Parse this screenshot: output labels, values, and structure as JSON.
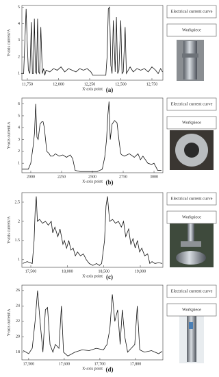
{
  "chart_data": [
    {
      "type": "line",
      "caption": "(a)",
      "annotations": [
        "Electrical current curve",
        "Workpiece"
      ],
      "x_label": "X-axis point",
      "y_label": "Y-axis current/A",
      "color": "#111111",
      "xlim": [
        11706,
        12838
      ],
      "ylim": [
        0.6,
        5.1
      ],
      "xticks": [
        {
          "value": 11750,
          "label": "11,750"
        },
        {
          "value": 12000,
          "label": "12,000"
        },
        {
          "value": 12250,
          "label": "12,250"
        },
        {
          "value": 12500,
          "label": "12,500"
        },
        {
          "value": 12750,
          "label": "12,750"
        }
      ],
      "yticks": [
        1,
        2,
        3,
        4,
        5
      ],
      "x": [
        11700,
        11720,
        11730,
        11740,
        11748,
        11758,
        11770,
        11782,
        11790,
        11798,
        11806,
        11815,
        11823,
        11832,
        11840,
        11848,
        11858,
        11870,
        11880,
        11890,
        11900,
        11930,
        11960,
        11990,
        12020,
        12050,
        12080,
        12110,
        12140,
        12170,
        12200,
        12230,
        12260,
        12275,
        12300,
        12340,
        12380,
        12390,
        12400,
        12410,
        12420,
        12430,
        12440,
        12455,
        12465,
        12475,
        12485,
        12500,
        12510,
        12520,
        12535,
        12545,
        12560,
        12575,
        12600,
        12630,
        12660,
        12690,
        12720,
        12750,
        12780,
        12800,
        12820,
        12835
      ],
      "values": [
        1,
        1,
        3,
        4.9,
        3,
        1.2,
        1,
        4.1,
        1,
        1,
        4.3,
        1.1,
        1,
        4.3,
        1.1,
        1,
        3.8,
        1,
        1.3,
        0.9,
        1.2,
        1.1,
        1.3,
        1.2,
        1.4,
        1.1,
        1.3,
        1.2,
        1.1,
        1.3,
        1.2,
        1.3,
        1.1,
        0.9,
        0.9,
        0.9,
        0.9,
        2,
        4.9,
        5,
        1.5,
        1,
        4.2,
        1.1,
        4.4,
        1,
        1.2,
        4.2,
        1,
        1.1,
        3.8,
        1,
        1.2,
        1.4,
        1.1,
        1.3,
        1.2,
        1.3,
        1.1,
        1.4,
        1.2,
        1,
        1.3,
        1.1
      ]
    },
    {
      "type": "line",
      "caption": "(b)",
      "annotations": [
        "Electrical current curve",
        "Workpiece"
      ],
      "x_label": "X-axis point",
      "y_label": "Y-axis current/A",
      "color": "#111111",
      "xlim": [
        1928,
        3072
      ],
      "ylim": [
        0.2,
        6.5
      ],
      "xticks": [
        2000,
        2250,
        2500,
        2750,
        3000
      ],
      "yticks": [
        1,
        2,
        3,
        4,
        5,
        6
      ],
      "x": [
        1930,
        1980,
        2000,
        2020,
        2030,
        2040,
        2050,
        2060,
        2075,
        2090,
        2100,
        2110,
        2130,
        2150,
        2160,
        2180,
        2200,
        2230,
        2260,
        2290,
        2320,
        2340,
        2360,
        2400,
        2450,
        2500,
        2540,
        2580,
        2600,
        2615,
        2625,
        2635,
        2645,
        2660,
        2680,
        2700,
        2715,
        2730,
        2740,
        2760,
        2800,
        2840,
        2870,
        2890,
        2910,
        2950,
        2980,
        3000,
        3030,
        3060
      ],
      "values": [
        0.5,
        0.5,
        1,
        2.5,
        3.5,
        6,
        3.2,
        3,
        4.3,
        4.5,
        4.5,
        4,
        2,
        1.8,
        1.6,
        1.6,
        1.8,
        1.6,
        1.7,
        1.5,
        1.7,
        1.4,
        0.4,
        0.3,
        0.3,
        0.3,
        0.3,
        0.5,
        1.5,
        3,
        5,
        6.2,
        3,
        4.3,
        4.6,
        4.4,
        3,
        1.8,
        1.7,
        1.6,
        1.8,
        1.5,
        1.8,
        1.3,
        1.6,
        1,
        0.9,
        1,
        0.4,
        0.4
      ]
    },
    {
      "type": "line",
      "caption": "(c)",
      "annotations": [
        "Electrical current curve",
        "Workpiece"
      ],
      "x_label": "X-axis point",
      "y_label": "Y-axis current/A",
      "color": "#111111",
      "xlim": [
        17378,
        19309
      ],
      "ylim": [
        0.8,
        2.75
      ],
      "xticks": [
        {
          "value": 17500,
          "label": "17,500"
        },
        {
          "value": 18000,
          "label": "18,000"
        },
        {
          "value": 18500,
          "label": "18,500"
        },
        {
          "value": 19000,
          "label": "19,000"
        }
      ],
      "yticks": [
        1,
        1.5,
        2,
        2.5
      ],
      "x": [
        17390,
        17450,
        17520,
        17545,
        17560,
        17575,
        17590,
        17620,
        17660,
        17700,
        17740,
        17780,
        17800,
        17830,
        17870,
        17900,
        17940,
        17960,
        17990,
        18020,
        18050,
        18080,
        18110,
        18140,
        18180,
        18220,
        18260,
        18300,
        18350,
        18400,
        18440,
        18470,
        18490,
        18510,
        18530,
        18550,
        18580,
        18620,
        18660,
        18700,
        18740,
        18770,
        18800,
        18840,
        18870,
        18900,
        18930,
        18960,
        18990,
        19020,
        19060,
        19100,
        19130,
        19160,
        19200,
        19250,
        19300
      ],
      "values": [
        0.9,
        0.95,
        0.9,
        1.5,
        2.3,
        2.65,
        2.0,
        2.05,
        1.95,
        2.0,
        1.9,
        2.0,
        1.7,
        1.85,
        1.6,
        1.8,
        1.4,
        1.5,
        1.3,
        1.5,
        1.25,
        1.3,
        1.1,
        1.2,
        1.1,
        1.15,
        1.0,
        0.9,
        0.85,
        0.9,
        0.85,
        0.9,
        1.2,
        1.5,
        2.4,
        2.65,
        2.0,
        2.05,
        1.95,
        2.0,
        1.85,
        2.0,
        1.6,
        1.8,
        1.4,
        1.55,
        1.3,
        1.5,
        1.2,
        1.3,
        1.1,
        1.15,
        0.9,
        0.95,
        0.9,
        0.92,
        0.9
      ]
    },
    {
      "type": "line",
      "caption": "(d)",
      "annotations": [
        "Electrical current curve",
        "Workpiece"
      ],
      "x_label": "X-axis point",
      "y_label": "Y-axis current/A",
      "color": "#111111",
      "xlim": [
        17481,
        17877
      ],
      "ylim": [
        17,
        26.7
      ],
      "xticks": [
        {
          "value": 17500,
          "label": "17,500"
        },
        {
          "value": 17600,
          "label": "17,600"
        },
        {
          "value": 17700,
          "label": "17,700"
        },
        {
          "value": 17800,
          "label": "17,800"
        }
      ],
      "yticks": [
        18,
        20,
        22,
        24,
        26
      ],
      "x": [
        17485,
        17500,
        17510,
        17518,
        17525,
        17532,
        17540,
        17547,
        17553,
        17560,
        17568,
        17575,
        17585,
        17592,
        17598,
        17610,
        17630,
        17650,
        17670,
        17690,
        17710,
        17720,
        17728,
        17735,
        17742,
        17750,
        17757,
        17763,
        17770,
        17778,
        17788,
        17798,
        17805,
        17812,
        17825,
        17845,
        17865,
        17875
      ],
      "values": [
        18.2,
        17.8,
        18.5,
        22,
        26,
        22,
        18,
        23.5,
        23.8,
        19,
        18,
        19,
        18.5,
        24,
        18,
        17.5,
        18,
        18.3,
        18.2,
        18.5,
        18.3,
        19,
        21,
        25.5,
        22,
        23.5,
        19,
        23.5,
        20,
        18,
        18.5,
        19,
        24,
        18.3,
        18,
        18.2,
        17.8,
        18.1
      ]
    }
  ]
}
